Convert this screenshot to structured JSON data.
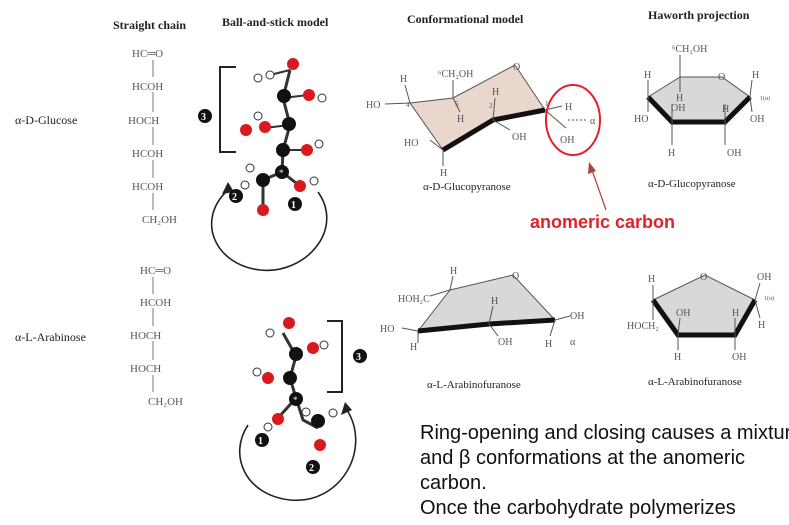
{
  "headers": {
    "straight_chain": "Straight chain",
    "ball_and_stick": "Ball-and-stick model",
    "conformational": "Conformational model",
    "haworth": "Haworth projection"
  },
  "rows": {
    "glucose": {
      "label": "α-D-Glucose",
      "chain": [
        "HC═O",
        "HCOH",
        "HOCH",
        "HCOH",
        "HCOH",
        "CH₂OH"
      ]
    },
    "arabinose": {
      "label": "α-L-Arabinose",
      "chain": [
        "HC═O",
        "HCOH",
        "HOCH",
        "HOCH",
        "CH₂OH"
      ]
    }
  },
  "captions": {
    "glucopyranose_conf": "α-D-Glucopyranose",
    "glucopyranose_haworth": "α-D-Glucopyranose",
    "arabinofuranose_conf": "α-L-Arabinofuranose",
    "arabinofuranose_haworth": "α-L-Arabinofuranose"
  },
  "markers": {
    "one": "1",
    "two": "2",
    "three": "3",
    "star": "*"
  },
  "annotation": {
    "label": "anomeric carbon",
    "color": "#e0222a"
  },
  "colors": {
    "oxygen": "#d71920",
    "carbon": "#111111",
    "hydrogen": "#ffffff",
    "ring_fill": "#e9d6cc",
    "ring_fill2": "#d8d8d8"
  },
  "body_text": [
    "Ring-opening and closing causes a mixture of α",
    "and β conformations at the anomeric",
    "carbon.",
    "Once the carbohydrate polymerizes"
  ]
}
